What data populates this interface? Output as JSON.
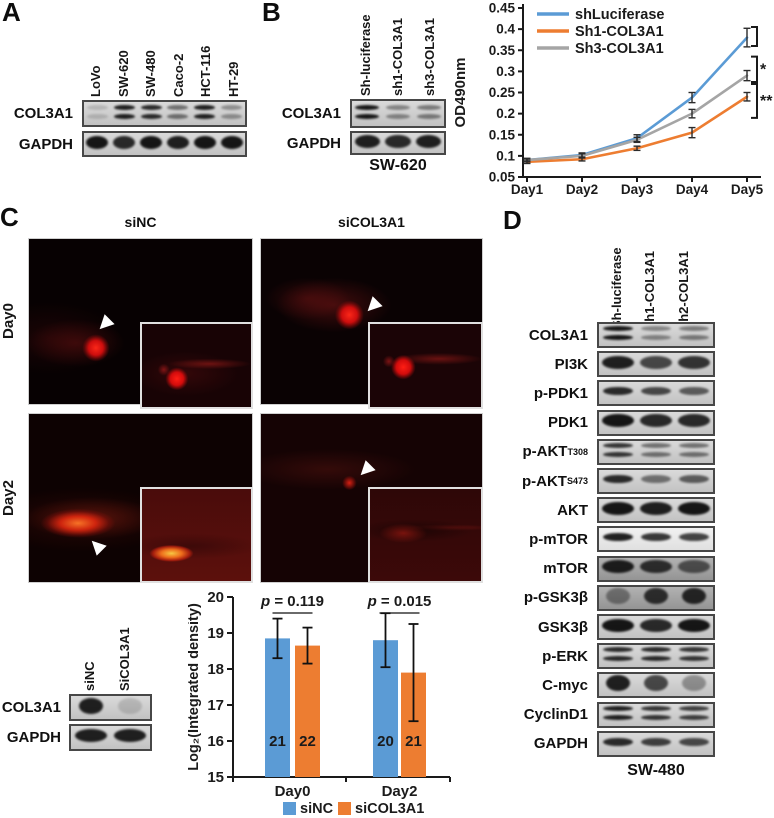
{
  "figure": {
    "panel_a": {
      "label": "A",
      "lane_labels": [
        "LoVo",
        "SW-620",
        "SW-480",
        "Caco-2",
        "HCT-116",
        "HT-29"
      ],
      "rows": [
        {
          "label": "COL3A1",
          "style": "double",
          "lanes": [
            0.15,
            0.9,
            0.85,
            0.5,
            0.9,
            0.35
          ]
        },
        {
          "label": "GAPDH",
          "style": "thick",
          "lanes": [
            0.95,
            0.85,
            0.95,
            0.9,
            0.95,
            0.95
          ]
        }
      ]
    },
    "panel_b": {
      "label": "B",
      "blot": {
        "lane_labels": [
          "Sh-luciferase",
          "sh1-COL3A1",
          "sh3-COL3A1"
        ],
        "rows": [
          {
            "label": "COL3A1",
            "style": "double",
            "lanes": [
              0.95,
              0.4,
              0.45
            ]
          },
          {
            "label": "GAPDH",
            "style": "thick",
            "lanes": [
              0.9,
              0.85,
              0.9
            ]
          }
        ],
        "cell_line": "SW-620"
      }
    },
    "panel_c": {
      "label": "C",
      "column_headers": [
        "siNC",
        "siCOL3A1"
      ],
      "row_labels": [
        "Day0",
        "Day2"
      ],
      "blot": {
        "lane_labels": [
          "siNC",
          "SiCOL3A1"
        ],
        "rows": [
          {
            "label": "COL3A1",
            "style": "blob",
            "lanes": [
              0.9,
              0.15
            ]
          },
          {
            "label": "GAPDH",
            "style": "thick",
            "lanes": [
              0.9,
              0.9
            ]
          }
        ]
      }
    },
    "panel_d": {
      "label": "D",
      "lane_labels": [
        "Sh-luciferase",
        "sh1-COL3A1",
        "sh2-COL3A1"
      ],
      "rows": [
        {
          "label": "COL3A1",
          "style": "double",
          "lanes": [
            0.95,
            0.4,
            0.45
          ]
        },
        {
          "label": "PI3K",
          "style": "thick",
          "lanes": [
            0.9,
            0.7,
            0.8
          ]
        },
        {
          "label": "p-PDK1",
          "style": "single",
          "lanes": [
            0.85,
            0.7,
            0.6
          ]
        },
        {
          "label": "PDK1",
          "style": "thick",
          "lanes": [
            0.95,
            0.85,
            0.85
          ]
        },
        {
          "label": "p-AKT",
          "sup": "T308",
          "style": "double",
          "lanes": [
            0.8,
            0.5,
            0.5
          ]
        },
        {
          "label": "p-AKT",
          "sup": "S473",
          "style": "single",
          "lanes": [
            0.85,
            0.5,
            0.6
          ]
        },
        {
          "label": "AKT",
          "style": "thick",
          "lanes": [
            0.95,
            0.9,
            0.95
          ]
        },
        {
          "label": "p-mTOR",
          "style": "single",
          "bg": "light",
          "lanes": [
            0.9,
            0.8,
            0.75
          ]
        },
        {
          "label": "mTOR",
          "style": "thick",
          "bg": "dark",
          "lanes": [
            0.9,
            0.8,
            0.6
          ]
        },
        {
          "label": "p-GSK3β",
          "style": "blob",
          "bg": "dark",
          "lanes": [
            0.4,
            0.8,
            0.85
          ]
        },
        {
          "label": "GSK3β",
          "style": "thick",
          "lanes": [
            0.95,
            0.85,
            0.95
          ]
        },
        {
          "label": "p-ERK",
          "style": "double",
          "lanes": [
            0.85,
            0.85,
            0.8
          ]
        },
        {
          "label": "C-myc",
          "style": "blob",
          "lanes": [
            0.9,
            0.7,
            0.35
          ]
        },
        {
          "label": "CyclinD1",
          "style": "double",
          "lanes": [
            0.9,
            0.8,
            0.75
          ]
        },
        {
          "label": "GAPDH",
          "style": "single",
          "lanes": [
            0.85,
            0.75,
            0.7
          ]
        }
      ],
      "cell_line": "SW-480"
    }
  },
  "chart_data": [
    {
      "type": "line",
      "x": [
        "Day1",
        "Day2",
        "Day3",
        "Day4",
        "Day5"
      ],
      "ylabel": "OD490nm",
      "ylim": [
        0.05,
        0.45
      ],
      "ytick_step": 0.05,
      "legend_position": "top-left",
      "grid": false,
      "series": [
        {
          "name": "shLuciferase",
          "color": "#5B9BD5",
          "values": [
            0.09,
            0.102,
            0.142,
            0.238,
            0.38
          ],
          "errors": [
            0.004,
            0.005,
            0.008,
            0.012,
            0.022
          ]
        },
        {
          "name": "Sh1-COL3A1",
          "color": "#ED7D31",
          "values": [
            0.086,
            0.092,
            0.118,
            0.155,
            0.24
          ],
          "errors": [
            0.004,
            0.004,
            0.005,
            0.012,
            0.01
          ]
        },
        {
          "name": "Sh3-COL3A1",
          "color": "#A5A5A5",
          "values": [
            0.09,
            0.1,
            0.138,
            0.2,
            0.29
          ],
          "errors": [
            0.004,
            0.005,
            0.006,
            0.01,
            0.012
          ]
        }
      ],
      "significance": [
        {
          "label": "*",
          "from": 0.275,
          "to": 0.335
        },
        {
          "label": "**",
          "from": 0.19,
          "to": 0.27
        }
      ],
      "endpoint_bracket": {
        "from": 0.36,
        "to": 0.405
      }
    },
    {
      "type": "bar",
      "categories": [
        "Day0",
        "Day2"
      ],
      "ylabel": "Log₂(Integrated density)",
      "ylim": [
        15,
        20
      ],
      "ytick_step": 1,
      "legend_position": "bottom",
      "grid": false,
      "series": [
        {
          "name": "siNC",
          "color": "#5B9BD5",
          "values": [
            18.85,
            18.8
          ],
          "errors": [
            0.55,
            0.75
          ],
          "counts": [
            21,
            20
          ]
        },
        {
          "name": "siCOL3A1",
          "color": "#ED7D31",
          "values": [
            18.65,
            17.9
          ],
          "errors": [
            0.5,
            1.35
          ],
          "counts": [
            22,
            21
          ]
        }
      ],
      "p_values": [
        "p = 0.119",
        "p = 0.015"
      ]
    }
  ]
}
